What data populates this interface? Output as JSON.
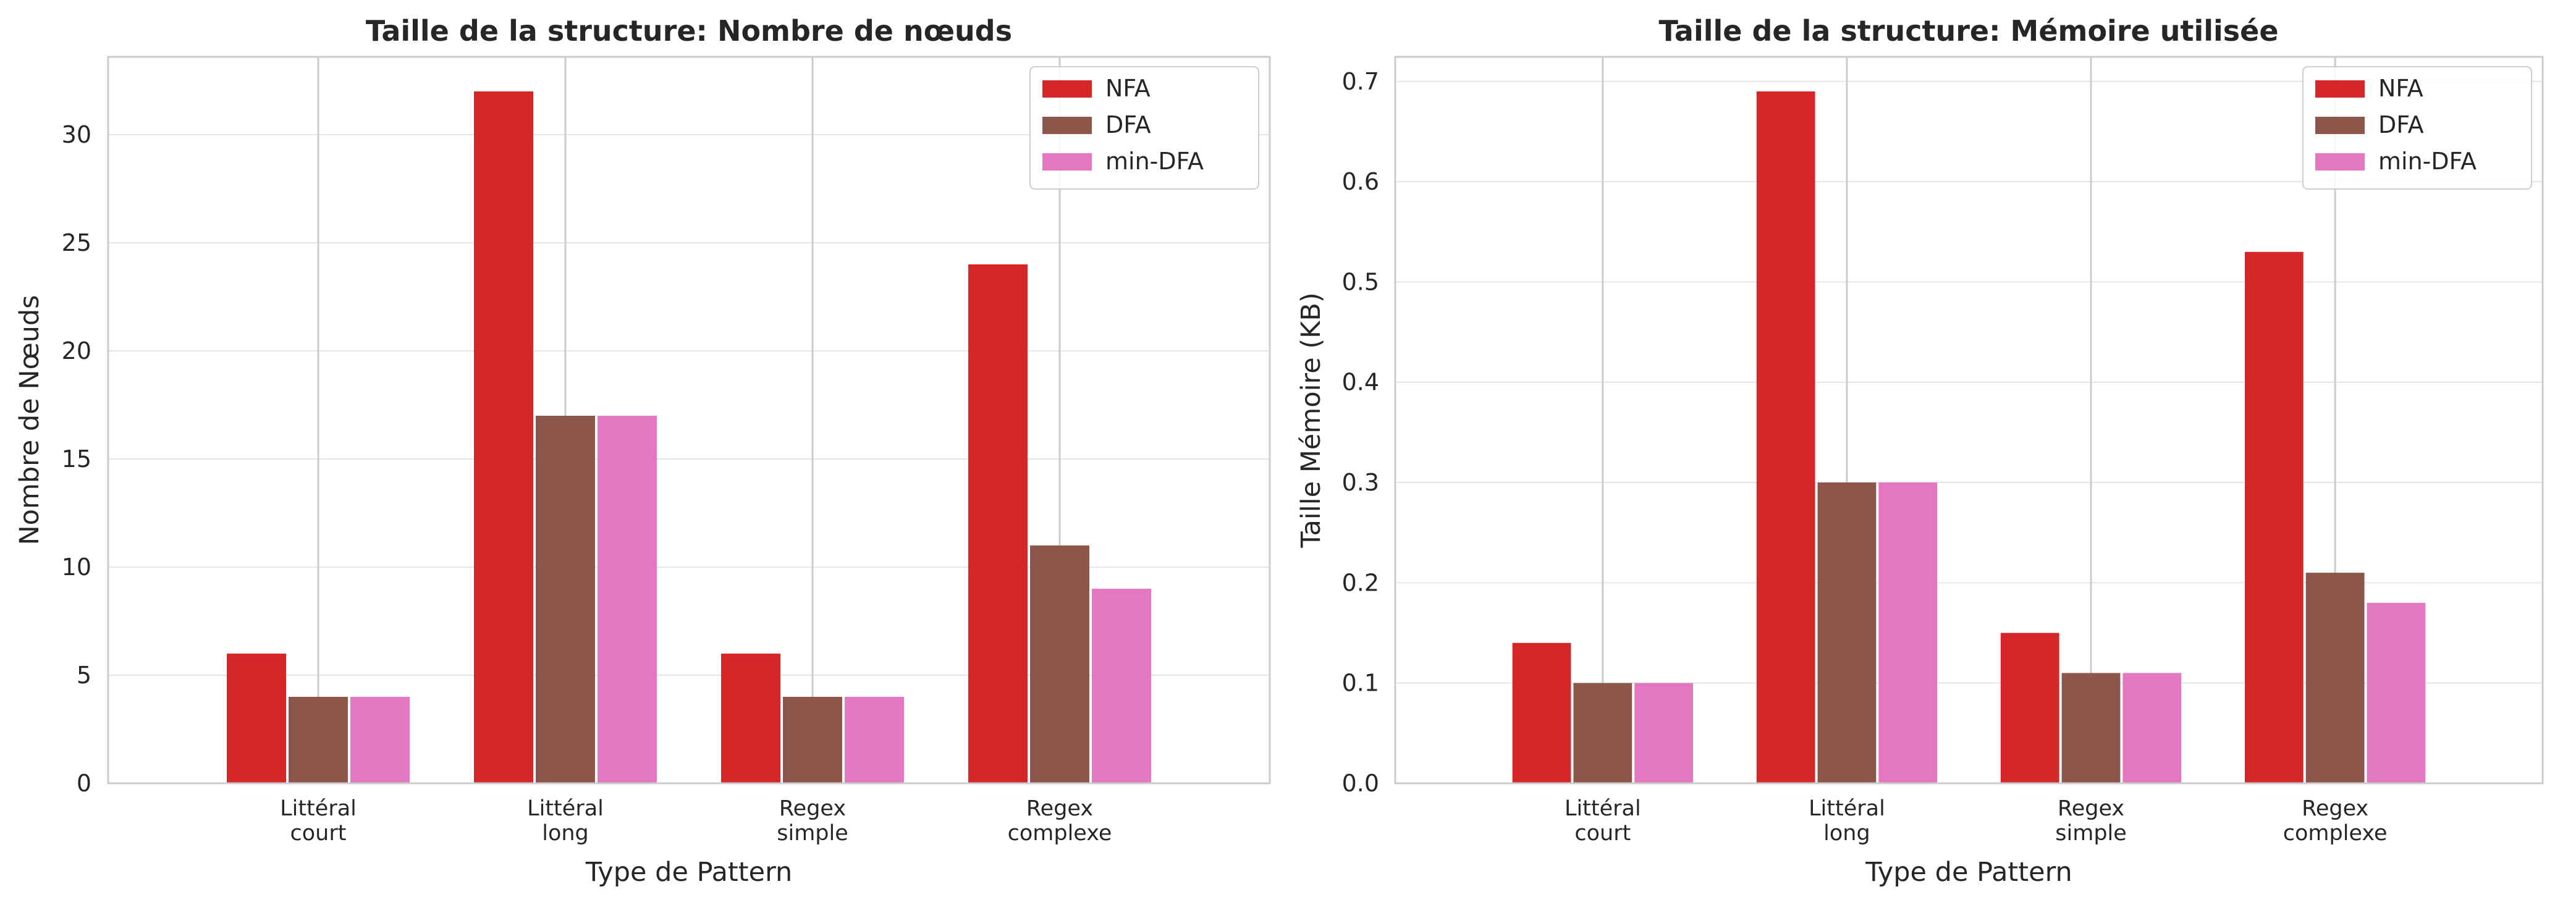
{
  "chart_data": [
    {
      "type": "bar",
      "title": "Taille de la structure: Nombre de nœuds",
      "xlabel": "Type de Pattern",
      "ylabel": "Nombre de Nœuds",
      "categories": [
        [
          "Littéral",
          "court"
        ],
        [
          "Littéral",
          "long"
        ],
        [
          "Regex",
          "simple"
        ],
        [
          "Regex",
          "complexe"
        ]
      ],
      "series": [
        {
          "name": "NFA",
          "color": "#d62728",
          "values": [
            6,
            32,
            6,
            24
          ]
        },
        {
          "name": "DFA",
          "color": "#8c564b",
          "values": [
            4,
            17,
            4,
            11
          ]
        },
        {
          "name": "min-DFA",
          "color": "#e377c2",
          "values": [
            4,
            17,
            4,
            9
          ]
        }
      ],
      "ylim": [
        0,
        33.6
      ],
      "yticks": [
        0,
        5,
        10,
        15,
        20,
        25,
        30
      ],
      "ytick_labels": [
        "0",
        "5",
        "10",
        "15",
        "20",
        "25",
        "30"
      ],
      "grid": true,
      "legend": "top-right"
    },
    {
      "type": "bar",
      "title": "Taille de la structure: Mémoire utilisée",
      "xlabel": "Type de Pattern",
      "ylabel": "Taille Mémoire (KB)",
      "categories": [
        [
          "Littéral",
          "court"
        ],
        [
          "Littéral",
          "long"
        ],
        [
          "Regex",
          "simple"
        ],
        [
          "Regex",
          "complexe"
        ]
      ],
      "series": [
        {
          "name": "NFA",
          "color": "#d62728",
          "values": [
            0.14,
            0.69,
            0.15,
            0.53
          ]
        },
        {
          "name": "DFA",
          "color": "#8c564b",
          "values": [
            0.1,
            0.3,
            0.11,
            0.21
          ]
        },
        {
          "name": "min-DFA",
          "color": "#e377c2",
          "values": [
            0.1,
            0.3,
            0.11,
            0.18
          ]
        }
      ],
      "ylim": [
        0,
        0.7245
      ],
      "yticks": [
        0.0,
        0.1,
        0.2,
        0.3,
        0.4,
        0.5,
        0.6,
        0.7
      ],
      "ytick_labels": [
        "0.0",
        "0.1",
        "0.2",
        "0.3",
        "0.4",
        "0.5",
        "0.6",
        "0.7"
      ],
      "grid": true,
      "legend": "top-right"
    }
  ]
}
